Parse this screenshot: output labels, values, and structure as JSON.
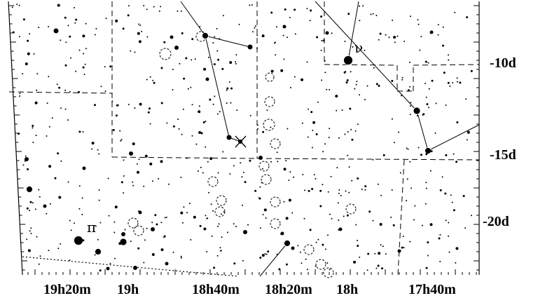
{
  "map": {
    "dec_labels": [
      "-10d",
      "-15d",
      "-20d"
    ],
    "ra_labels": [
      "19h20m",
      "19h",
      "18h40m",
      "18h20m",
      "18h",
      "17h40m"
    ],
    "star_labels": [
      "ν",
      "π"
    ]
  }
}
